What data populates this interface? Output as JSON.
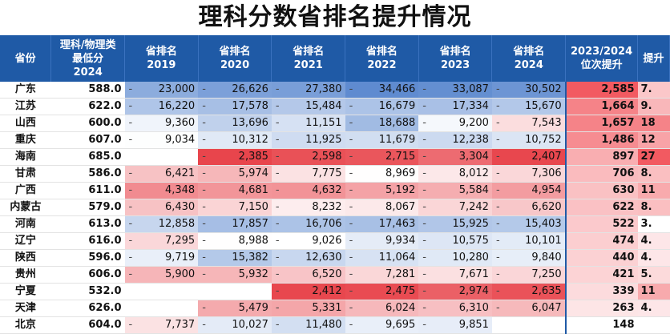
{
  "title": "理科分数省排名提升情况",
  "headers": {
    "province": "省份",
    "score_line1": "理科/物理类",
    "score_line2": "最低分",
    "score_line3": "2024",
    "r2019_a": "省排名",
    "r2019_b": "2019",
    "r2020_a": "省排名",
    "r2020_b": "2020",
    "r2021_a": "省排名",
    "r2021_b": "2021",
    "r2022_a": "省排名",
    "r2022_b": "2022",
    "r2023_a": "省排名",
    "r2023_b": "2023",
    "r2024_a": "省排名",
    "r2024_b": "2024",
    "up_a": "2023/2024",
    "up_b": "位次提升",
    "pct": "提升"
  },
  "rows": [
    {
      "province": "广东",
      "score": "588.0",
      "r2019": "23,000",
      "r2020": "26,626",
      "r2021": "27,380",
      "r2022": "34,466",
      "r2023": "33,087",
      "r2024": "30,502",
      "up": "2,585",
      "pct": "7."
    },
    {
      "province": "江苏",
      "score": "622.0",
      "r2019": "16,220",
      "r2020": "17,578",
      "r2021": "15,484",
      "r2022": "16,679",
      "r2023": "17,334",
      "r2024": "15,670",
      "up": "1,664",
      "pct": "9."
    },
    {
      "province": "山西",
      "score": "600.0",
      "r2019": "9,360",
      "r2020": "13,696",
      "r2021": "11,151",
      "r2022": "18,688",
      "r2023": "9,200",
      "r2024": "7,543",
      "up": "1,657",
      "pct": "18"
    },
    {
      "province": "重庆",
      "score": "607.0",
      "r2019": "9,034",
      "r2020": "10,312",
      "r2021": "11,925",
      "r2022": "11,679",
      "r2023": "12,238",
      "r2024": "10,752",
      "up": "1,486",
      "pct": "12"
    },
    {
      "province": "海南",
      "score": "685.0",
      "r2019": "",
      "r2020": "2,385",
      "r2021": "2,598",
      "r2022": "2,715",
      "r2023": "3,304",
      "r2024": "2,407",
      "up": "897",
      "pct": "27"
    },
    {
      "province": "甘肃",
      "score": "586.0",
      "r2019": "6,421",
      "r2020": "5,974",
      "r2021": "7,775",
      "r2022": "8,969",
      "r2023": "8,012",
      "r2024": "7,306",
      "up": "706",
      "pct": "8."
    },
    {
      "province": "广西",
      "score": "611.0",
      "r2019": "4,348",
      "r2020": "4,681",
      "r2021": "4,632",
      "r2022": "5,192",
      "r2023": "5,584",
      "r2024": "4,954",
      "up": "630",
      "pct": "11"
    },
    {
      "province": "内蒙古",
      "score": "579.0",
      "r2019": "6,430",
      "r2020": "7,150",
      "r2021": "8,232",
      "r2022": "8,067",
      "r2023": "7,242",
      "r2024": "6,620",
      "up": "622",
      "pct": "8."
    },
    {
      "province": "河南",
      "score": "613.0",
      "r2019": "12,858",
      "r2020": "17,857",
      "r2021": "16,706",
      "r2022": "17,463",
      "r2023": "15,925",
      "r2024": "15,403",
      "up": "522",
      "pct": "3."
    },
    {
      "province": "辽宁",
      "score": "616.0",
      "r2019": "7,295",
      "r2020": "8,988",
      "r2021": "9,026",
      "r2022": "9,934",
      "r2023": "10,575",
      "r2024": "10,101",
      "up": "474",
      "pct": "4."
    },
    {
      "province": "陕西",
      "score": "596.0",
      "r2019": "9,719",
      "r2020": "15,382",
      "r2021": "12,630",
      "r2022": "11,064",
      "r2023": "10,280",
      "r2024": "9,840",
      "up": "440",
      "pct": "4."
    },
    {
      "province": "贵州",
      "score": "606.0",
      "r2019": "5,900",
      "r2020": "5,932",
      "r2021": "6,520",
      "r2022": "7,281",
      "r2023": "7,671",
      "r2024": "7,250",
      "up": "421",
      "pct": "5."
    },
    {
      "province": "宁夏",
      "score": "532.0",
      "r2019": "",
      "r2020": "",
      "r2021": "2,412",
      "r2022": "2,475",
      "r2023": "2,974",
      "r2024": "2,635",
      "up": "339",
      "pct": "11"
    },
    {
      "province": "天津",
      "score": "626.0",
      "r2019": "",
      "r2020": "5,479",
      "r2021": "5,331",
      "r2022": "6,024",
      "r2023": "6,310",
      "r2024": "6,047",
      "up": "263",
      "pct": "4."
    },
    {
      "province": "北京",
      "score": "604.0",
      "r2019": "7,737",
      "r2020": "10,027",
      "r2021": "11,480",
      "r2022": "9,695",
      "r2023": "9,851",
      "r2024": "",
      "up": "148",
      "pct": ""
    }
  ],
  "dash_symbol": "-",
  "colors": {
    "header_bg": "#1f5aa6",
    "scale_low_red": "#e8454c",
    "scale_mid": "#ffffff",
    "scale_high_blue": "#5f8bd0",
    "up_low": "#ffffff",
    "up_high": "#f25a61"
  }
}
